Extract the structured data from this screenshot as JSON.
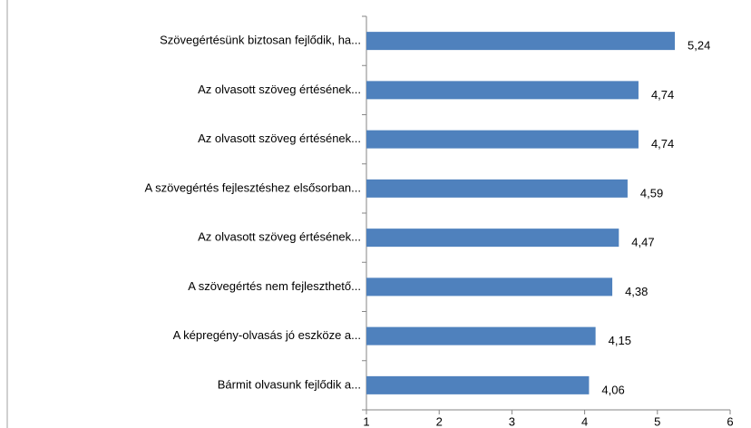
{
  "chart_data": {
    "type": "bar",
    "orientation": "horizontal",
    "categories": [
      "Szövegértésünk biztosan fejlődik, ha...",
      "Az olvasott szöveg értésének...",
      "Az olvasott szöveg értésének...",
      "A szövegértés fejlesztéshez elsősorban...",
      "Az olvasott szöveg értésének...",
      "A szövegértés nem fejleszthető...",
      "A képregény-olvasás jó eszköze a...",
      "Bármit olvasunk fejlődik a..."
    ],
    "values": [
      5.24,
      4.74,
      4.74,
      4.59,
      4.47,
      4.38,
      4.15,
      4.06
    ],
    "value_labels": [
      "5,24",
      "4,74",
      "4,74",
      "4,59",
      "4,47",
      "4,38",
      "4,15",
      "4,06"
    ],
    "color": "#4f81bd",
    "xlim": [
      1,
      6
    ],
    "xticks": [
      1,
      2,
      3,
      4,
      5,
      6
    ]
  }
}
